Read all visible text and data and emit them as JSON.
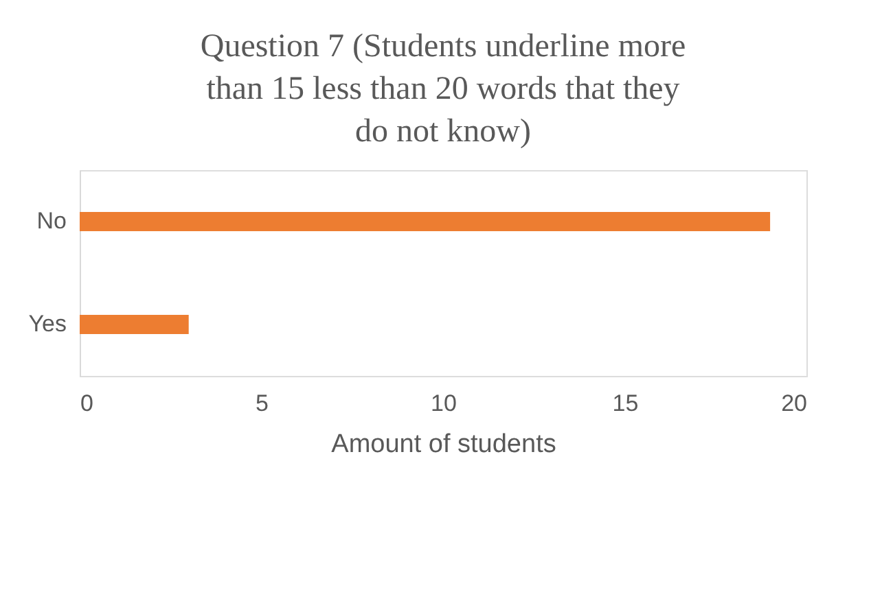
{
  "chart_data": {
    "type": "bar",
    "orientation": "horizontal",
    "title": "Question 7 (Students underline more than 15 less than 20 words that they do not know)",
    "xlabel": "Amount of students",
    "categories": [
      "No",
      "Yes",
      null
    ],
    "series": [
      {
        "color": "#ed7d31",
        "values": [
          19,
          3,
          null
        ]
      }
    ],
    "xlim": [
      0,
      20
    ],
    "xticks": [
      0,
      5,
      10,
      15,
      20
    ],
    "grid": false,
    "legend": false
  }
}
